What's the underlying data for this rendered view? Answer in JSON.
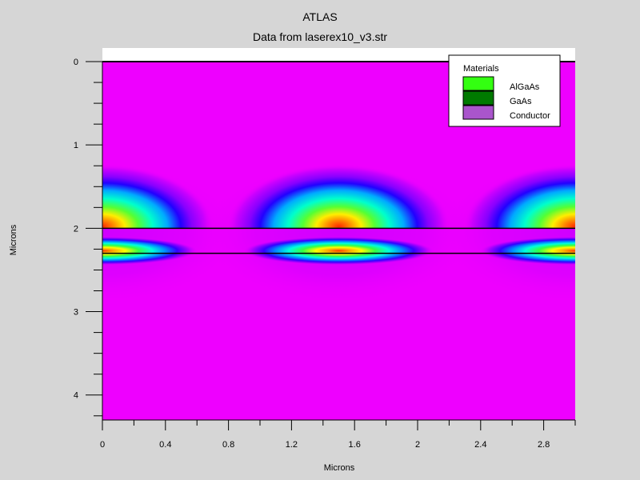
{
  "chart_data": {
    "type": "heatmap",
    "title": "ATLAS",
    "subtitle": "Data from laserex10_v3.str",
    "xlabel": "Microns",
    "ylabel": "Microns",
    "xlim": [
      0,
      3.0
    ],
    "ylim": [
      4.3,
      0
    ],
    "x_ticks": [
      "0",
      "0.4",
      "0.8",
      "1.2",
      "1.6",
      "2",
      "2.4",
      "2.8"
    ],
    "x_tick_values": [
      0,
      0.4,
      0.8,
      1.2,
      1.6,
      2.0,
      2.4,
      2.8
    ],
    "y_ticks": [
      "0",
      "1",
      "2",
      "3",
      "4"
    ],
    "y_tick_values": [
      0,
      1,
      2,
      3,
      4
    ],
    "y_minor_step": 0.25,
    "x_minor_step": 0.2,
    "region_top_y": 0.0,
    "region_bottom_y": 4.3,
    "interface_lines_y": [
      0.0,
      2.0,
      2.3
    ],
    "mode_centers_x": [
      0,
      1.5,
      3.0
    ],
    "mode_peaks_y": [
      1.98,
      2.27
    ],
    "background_color": "#ee00ff",
    "legend": {
      "title": "Materials",
      "position": "top-right",
      "items": [
        {
          "label": "AlGaAs",
          "color": "#33ff11"
        },
        {
          "label": "GaAs",
          "color": "#007a00"
        },
        {
          "label": "Conductor",
          "color": "#aa55cc"
        }
      ]
    }
  }
}
